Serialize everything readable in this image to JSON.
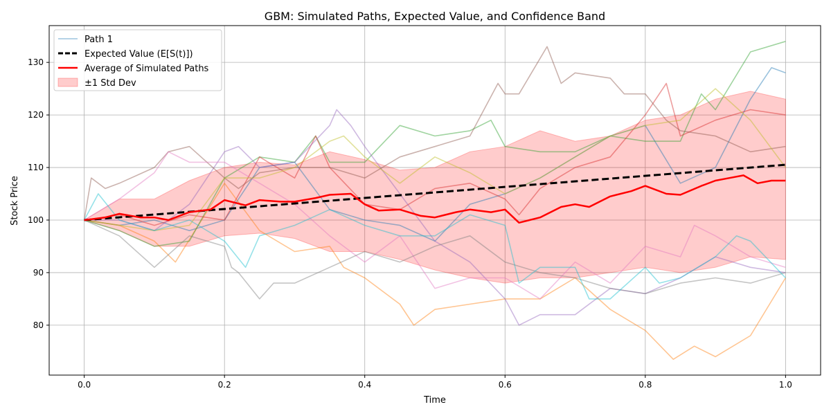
{
  "chart_data": {
    "type": "line",
    "title": "GBM: Simulated Paths, Expected Value, and Confidence Band",
    "xlabel": "Time",
    "ylabel": "Stock Price",
    "xlim": [
      -0.05,
      1.05
    ],
    "ylim": [
      70.5,
      137
    ],
    "xticks": [
      0.0,
      0.2,
      0.4,
      0.6,
      0.8,
      1.0
    ],
    "xtick_labels": [
      "0.0",
      "0.2",
      "0.4",
      "0.6",
      "0.8",
      "1.0"
    ],
    "yticks": [
      80,
      90,
      100,
      110,
      120,
      130
    ],
    "ytick_labels": [
      "80",
      "90",
      "100",
      "110",
      "120",
      "130"
    ],
    "grid": true,
    "legend_position": "top-left",
    "legend": [
      {
        "label": "Path 1",
        "kind": "thin-line",
        "color": "#1f77b4"
      },
      {
        "label": "Expected Value (E[S(t)])",
        "kind": "dashed-line",
        "color": "#000000"
      },
      {
        "label": "Average of Simulated Paths",
        "kind": "thick-line",
        "color": "#ff0000"
      },
      {
        "label": "±1 Std Dev",
        "kind": "patch",
        "color": "#ff0000"
      }
    ],
    "paths": [
      {
        "color": "#1f77b4",
        "x": [
          0,
          0.05,
          0.1,
          0.15,
          0.2,
          0.25,
          0.3,
          0.35,
          0.4,
          0.45,
          0.5,
          0.55,
          0.6,
          0.65,
          0.7,
          0.75,
          0.8,
          0.85,
          0.9,
          0.95,
          0.98,
          1.0
        ],
        "y": [
          100,
          99,
          100,
          98,
          100,
          110,
          111,
          102,
          100,
          99,
          96,
          103,
          105,
          108,
          112,
          116,
          118,
          107,
          110,
          123,
          129,
          128
        ]
      },
      {
        "color": "#ff7f0e",
        "x": [
          0,
          0.05,
          0.1,
          0.13,
          0.2,
          0.25,
          0.3,
          0.35,
          0.37,
          0.4,
          0.45,
          0.47,
          0.5,
          0.55,
          0.6,
          0.65,
          0.7,
          0.75,
          0.8,
          0.84,
          0.87,
          0.9,
          0.95,
          1.0
        ],
        "y": [
          100,
          99,
          96,
          92,
          107,
          98,
          94,
          95,
          91,
          89,
          84,
          80,
          83,
          84,
          85,
          85,
          89,
          83,
          79,
          73.5,
          76,
          74,
          78,
          89
        ]
      },
      {
        "color": "#2ca02c",
        "x": [
          0,
          0.05,
          0.1,
          0.15,
          0.2,
          0.25,
          0.3,
          0.33,
          0.35,
          0.4,
          0.45,
          0.5,
          0.55,
          0.58,
          0.6,
          0.65,
          0.7,
          0.75,
          0.8,
          0.85,
          0.88,
          0.9,
          0.95,
          1.0
        ],
        "y": [
          100,
          98,
          95,
          96,
          108,
          112,
          111,
          116,
          111,
          111,
          118,
          116,
          117,
          119,
          114,
          113,
          113,
          116,
          115,
          115,
          124,
          121,
          132,
          134
        ]
      },
      {
        "color": "#d62728",
        "x": [
          0,
          0.05,
          0.1,
          0.15,
          0.2,
          0.25,
          0.3,
          0.33,
          0.35,
          0.4,
          0.45,
          0.5,
          0.55,
          0.6,
          0.62,
          0.65,
          0.7,
          0.75,
          0.8,
          0.83,
          0.85,
          0.9,
          0.95,
          1.0
        ],
        "y": [
          100,
          101,
          99,
          101,
          100,
          112,
          108,
          116,
          110,
          103,
          102,
          106,
          107,
          104,
          101,
          106,
          110,
          112,
          120,
          126,
          116,
          119,
          121,
          120
        ]
      },
      {
        "color": "#9467bd",
        "x": [
          0,
          0.05,
          0.1,
          0.15,
          0.2,
          0.22,
          0.25,
          0.3,
          0.35,
          0.36,
          0.38,
          0.4,
          0.45,
          0.5,
          0.55,
          0.6,
          0.62,
          0.65,
          0.7,
          0.75,
          0.8,
          0.85,
          0.9,
          0.95,
          1.0
        ],
        "y": [
          100,
          100,
          98,
          103,
          113,
          114,
          110,
          111,
          118,
          121,
          118,
          114,
          105,
          96,
          92,
          85,
          80,
          82,
          82,
          87,
          86,
          89,
          93,
          91,
          90
        ]
      },
      {
        "color": "#8c564b",
        "x": [
          0,
          0.01,
          0.03,
          0.05,
          0.1,
          0.12,
          0.15,
          0.2,
          0.22,
          0.25,
          0.3,
          0.35,
          0.4,
          0.45,
          0.5,
          0.55,
          0.59,
          0.6,
          0.62,
          0.66,
          0.68,
          0.7,
          0.75,
          0.77,
          0.8,
          0.83,
          0.85,
          0.9,
          0.95,
          1.0
        ],
        "y": [
          100,
          108,
          106,
          107,
          110,
          113,
          114,
          108,
          106,
          109,
          110,
          110,
          108,
          112,
          114,
          116,
          126,
          124,
          124,
          133,
          126,
          128,
          127,
          124,
          124,
          119,
          117,
          116,
          113,
          114
        ]
      },
      {
        "color": "#e377c2",
        "x": [
          0,
          0.05,
          0.08,
          0.1,
          0.12,
          0.15,
          0.2,
          0.25,
          0.3,
          0.35,
          0.4,
          0.45,
          0.5,
          0.55,
          0.6,
          0.65,
          0.7,
          0.75,
          0.8,
          0.85,
          0.87,
          0.9,
          0.95,
          1.0
        ],
        "y": [
          100,
          104,
          107,
          109,
          113,
          111,
          111,
          107,
          103,
          97,
          92,
          97,
          87,
          89,
          89,
          85,
          92,
          88,
          95,
          93,
          99,
          97,
          93,
          91
        ]
      },
      {
        "color": "#7f7f7f",
        "x": [
          0,
          0.05,
          0.1,
          0.15,
          0.2,
          0.21,
          0.22,
          0.25,
          0.27,
          0.3,
          0.35,
          0.4,
          0.45,
          0.5,
          0.55,
          0.6,
          0.65,
          0.7,
          0.75,
          0.8,
          0.85,
          0.9,
          0.95,
          1.0
        ],
        "y": [
          100,
          97,
          91,
          97,
          95,
          91,
          90,
          85,
          88,
          88,
          91,
          94,
          92,
          95,
          97,
          92,
          90,
          89,
          87,
          86,
          88,
          89,
          88,
          90
        ]
      },
      {
        "color": "#bcbd22",
        "x": [
          0,
          0.05,
          0.1,
          0.15,
          0.2,
          0.25,
          0.3,
          0.35,
          0.37,
          0.4,
          0.45,
          0.5,
          0.55,
          0.6,
          0.65,
          0.7,
          0.75,
          0.8,
          0.85,
          0.9,
          0.95,
          1.0
        ],
        "y": [
          100,
          99,
          98,
          99,
          108,
          108,
          110,
          115,
          116,
          112,
          107,
          112,
          109,
          105,
          108,
          112,
          116,
          118,
          119,
          125,
          119,
          110
        ]
      },
      {
        "color": "#17becf",
        "x": [
          0,
          0.02,
          0.05,
          0.1,
          0.15,
          0.2,
          0.23,
          0.25,
          0.3,
          0.35,
          0.4,
          0.45,
          0.5,
          0.55,
          0.6,
          0.62,
          0.65,
          0.7,
          0.72,
          0.75,
          0.8,
          0.82,
          0.85,
          0.9,
          0.93,
          0.95,
          1.0
        ],
        "y": [
          100,
          105,
          100,
          98,
          100,
          96,
          91,
          97,
          99,
          102,
          99,
          97,
          97,
          101,
          99,
          88,
          91,
          91,
          85,
          85,
          91,
          88,
          89,
          93,
          97,
          96,
          89
        ]
      }
    ],
    "expected_value": {
      "x": [
        0,
        1.0
      ],
      "y": [
        100,
        110.52
      ]
    },
    "average": {
      "x": [
        0,
        0.03,
        0.05,
        0.08,
        0.1,
        0.12,
        0.15,
        0.18,
        0.2,
        0.23,
        0.25,
        0.28,
        0.3,
        0.33,
        0.35,
        0.38,
        0.4,
        0.42,
        0.45,
        0.48,
        0.5,
        0.53,
        0.55,
        0.58,
        0.6,
        0.62,
        0.65,
        0.68,
        0.7,
        0.72,
        0.75,
        0.78,
        0.8,
        0.83,
        0.85,
        0.88,
        0.9,
        0.92,
        0.94,
        0.96,
        0.98,
        1.0
      ],
      "y": [
        100,
        100.5,
        101.2,
        100.5,
        100.5,
        100,
        101.5,
        102,
        103.8,
        102.8,
        103.8,
        103.5,
        103.5,
        104.2,
        104.8,
        105,
        103,
        101.8,
        102,
        100.8,
        100.5,
        101.5,
        102,
        101.5,
        102,
        99.5,
        100.5,
        102.5,
        103,
        102.5,
        104.5,
        105.5,
        106.5,
        105,
        104.8,
        106.5,
        107.5,
        108,
        108.5,
        107,
        107.5,
        107.5
      ]
    },
    "std_band": {
      "x": [
        0,
        0.05,
        0.1,
        0.15,
        0.2,
        0.25,
        0.3,
        0.35,
        0.4,
        0.45,
        0.5,
        0.55,
        0.6,
        0.65,
        0.7,
        0.75,
        0.8,
        0.85,
        0.9,
        0.95,
        1.0
      ],
      "upper": [
        100,
        104,
        104,
        107.5,
        110,
        111,
        110.5,
        113,
        111.5,
        109.5,
        110,
        113,
        114,
        117,
        115,
        116,
        119,
        120,
        123,
        124.5,
        123
      ],
      "lower": [
        100,
        98,
        95,
        95,
        97,
        97.5,
        96.5,
        94,
        94,
        92.5,
        90.5,
        89,
        88,
        89,
        89,
        90,
        91,
        90,
        91,
        93,
        92.5
      ]
    }
  }
}
